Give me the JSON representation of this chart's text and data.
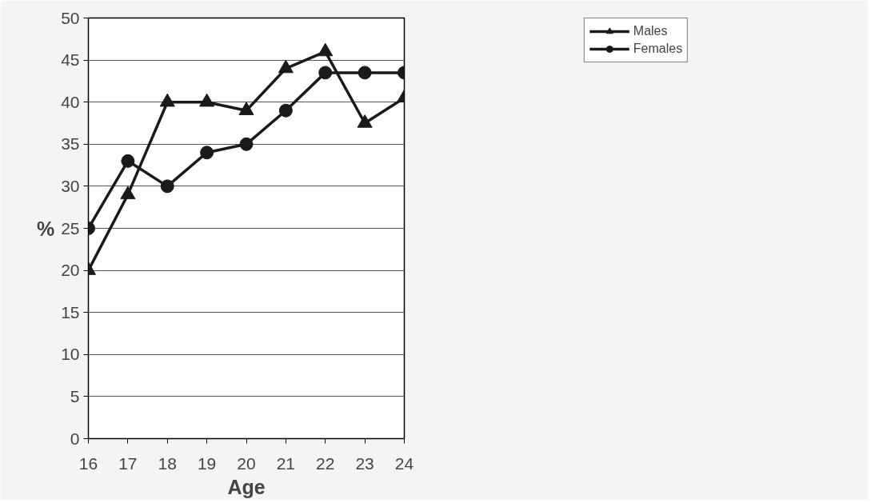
{
  "chart_data": {
    "type": "line",
    "xlabel": "Age",
    "ylabel": "%",
    "x": [
      16,
      17,
      18,
      19,
      20,
      21,
      22,
      23,
      24
    ],
    "xlim": [
      16,
      24
    ],
    "xticks": [
      16,
      17,
      18,
      19,
      20,
      21,
      22,
      23,
      24
    ],
    "ylim": [
      0,
      50
    ],
    "yticks": [
      0,
      5,
      10,
      15,
      20,
      25,
      30,
      35,
      40,
      45,
      50
    ],
    "grid": "y",
    "legend": "top right",
    "series": [
      {
        "name": "Males",
        "color": "#1a1a1a",
        "marker": "triangle",
        "values": [
          20,
          29,
          40,
          40,
          39,
          44,
          46,
          37.5,
          40.5
        ]
      },
      {
        "name": "Females",
        "color": "#1a1a1a",
        "marker": "circle",
        "values": [
          25,
          33,
          30,
          34,
          35,
          39,
          43.5,
          43.5,
          43.5
        ]
      }
    ]
  }
}
